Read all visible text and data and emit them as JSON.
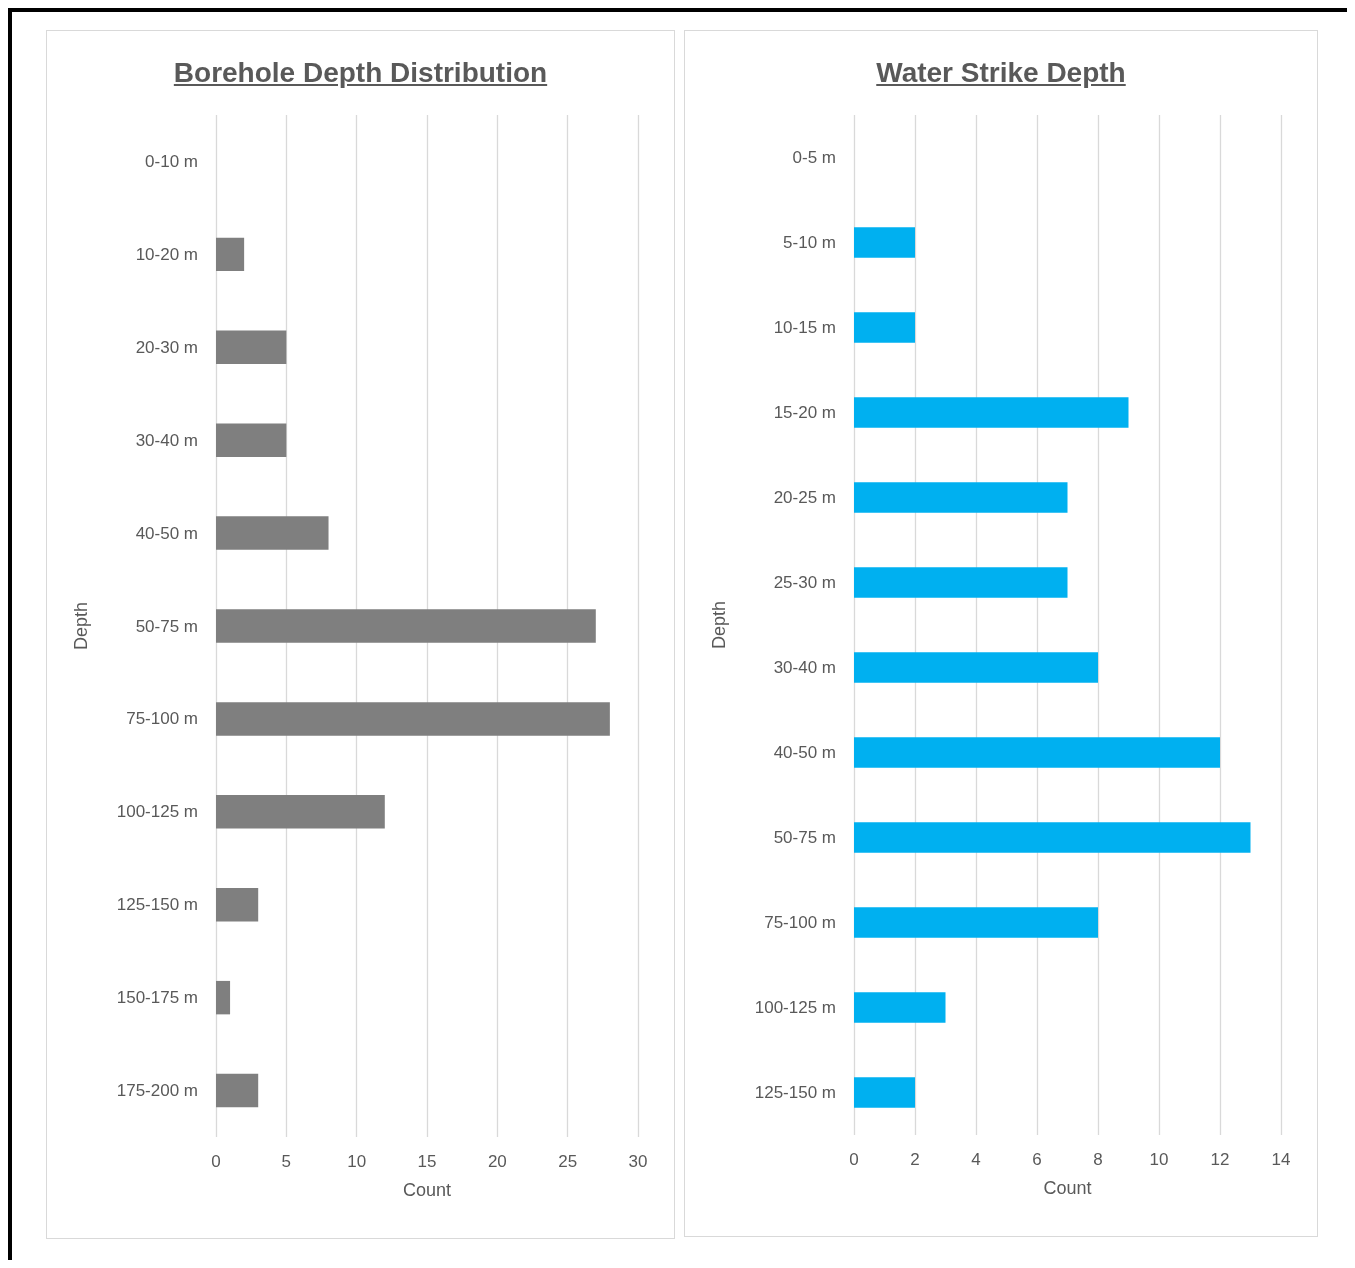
{
  "chart_data": [
    {
      "type": "bar",
      "orientation": "horizontal",
      "title": "Borehole Depth Distribution",
      "xlabel": "Count",
      "ylabel": "Depth",
      "categories": [
        "0-10 m",
        "10-20 m",
        "20-30 m",
        "30-40 m",
        "40-50 m",
        "50-75 m",
        "75-100 m",
        "100-125 m",
        "125-150 m",
        "150-175 m",
        "175-200 m"
      ],
      "values": [
        0,
        2,
        5,
        5,
        8,
        27,
        28,
        12,
        3,
        1,
        3
      ],
      "color": "#7f7f7f",
      "xlim": [
        0,
        30
      ],
      "xticks": [
        0,
        5,
        10,
        15,
        20,
        25,
        30
      ],
      "grid": "x"
    },
    {
      "type": "bar",
      "orientation": "horizontal",
      "title": "Water Strike Depth",
      "xlabel": "Count",
      "ylabel": "Depth",
      "categories": [
        "0-5 m",
        "5-10 m",
        "10-15 m",
        "15-20 m",
        "20-25 m",
        "25-30 m",
        "30-40 m",
        "40-50 m",
        "50-75 m",
        "75-100 m",
        "100-125 m",
        "125-150 m"
      ],
      "values": [
        0,
        2,
        2,
        9,
        7,
        7,
        8,
        12,
        13,
        8,
        3,
        2
      ],
      "color": "#00b0f0",
      "xlim": [
        0,
        14
      ],
      "xticks": [
        0,
        2,
        4,
        6,
        8,
        10,
        12,
        14
      ],
      "grid": "x"
    }
  ]
}
